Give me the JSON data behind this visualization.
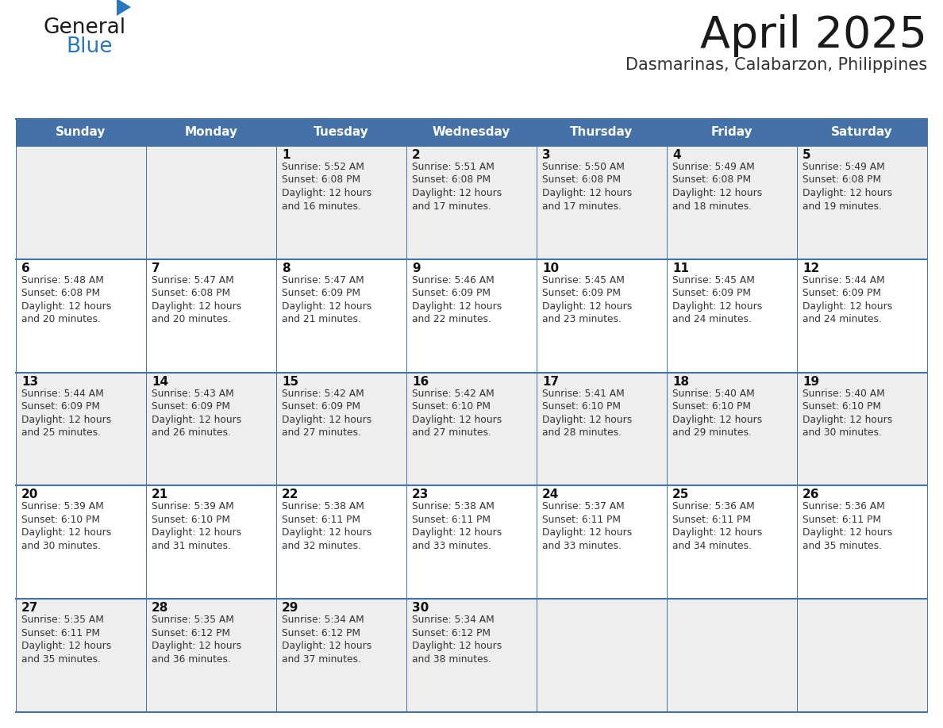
{
  "title": "April 2025",
  "subtitle": "Dasmarinas, Calabarzon, Philippines",
  "header_color": "#4472a8",
  "header_text_color": "#ffffff",
  "row_bg_colors": [
    "#eeeeee",
    "#ffffff",
    "#eeeeee",
    "#ffffff",
    "#eeeeee"
  ],
  "border_color": "#4472a8",
  "inner_line_color": "#4472a8",
  "day_headers": [
    "Sunday",
    "Monday",
    "Tuesday",
    "Wednesday",
    "Thursday",
    "Friday",
    "Saturday"
  ],
  "title_color": "#1a1a1a",
  "subtitle_color": "#333333",
  "cell_text_color": "#333333",
  "day_num_color": "#111111",
  "logo_general_color": "#1a1a1a",
  "logo_blue_color": "#2878c0",
  "weeks": [
    [
      {
        "day": "",
        "sunrise": "",
        "sunset": "",
        "daylight": ""
      },
      {
        "day": "",
        "sunrise": "",
        "sunset": "",
        "daylight": ""
      },
      {
        "day": "1",
        "sunrise": "5:52 AM",
        "sunset": "6:08 PM",
        "daylight": "12 hours\nand 16 minutes."
      },
      {
        "day": "2",
        "sunrise": "5:51 AM",
        "sunset": "6:08 PM",
        "daylight": "12 hours\nand 17 minutes."
      },
      {
        "day": "3",
        "sunrise": "5:50 AM",
        "sunset": "6:08 PM",
        "daylight": "12 hours\nand 17 minutes."
      },
      {
        "day": "4",
        "sunrise": "5:49 AM",
        "sunset": "6:08 PM",
        "daylight": "12 hours\nand 18 minutes."
      },
      {
        "day": "5",
        "sunrise": "5:49 AM",
        "sunset": "6:08 PM",
        "daylight": "12 hours\nand 19 minutes."
      }
    ],
    [
      {
        "day": "6",
        "sunrise": "5:48 AM",
        "sunset": "6:08 PM",
        "daylight": "12 hours\nand 20 minutes."
      },
      {
        "day": "7",
        "sunrise": "5:47 AM",
        "sunset": "6:08 PM",
        "daylight": "12 hours\nand 20 minutes."
      },
      {
        "day": "8",
        "sunrise": "5:47 AM",
        "sunset": "6:09 PM",
        "daylight": "12 hours\nand 21 minutes."
      },
      {
        "day": "9",
        "sunrise": "5:46 AM",
        "sunset": "6:09 PM",
        "daylight": "12 hours\nand 22 minutes."
      },
      {
        "day": "10",
        "sunrise": "5:45 AM",
        "sunset": "6:09 PM",
        "daylight": "12 hours\nand 23 minutes."
      },
      {
        "day": "11",
        "sunrise": "5:45 AM",
        "sunset": "6:09 PM",
        "daylight": "12 hours\nand 24 minutes."
      },
      {
        "day": "12",
        "sunrise": "5:44 AM",
        "sunset": "6:09 PM",
        "daylight": "12 hours\nand 24 minutes."
      }
    ],
    [
      {
        "day": "13",
        "sunrise": "5:44 AM",
        "sunset": "6:09 PM",
        "daylight": "12 hours\nand 25 minutes."
      },
      {
        "day": "14",
        "sunrise": "5:43 AM",
        "sunset": "6:09 PM",
        "daylight": "12 hours\nand 26 minutes."
      },
      {
        "day": "15",
        "sunrise": "5:42 AM",
        "sunset": "6:09 PM",
        "daylight": "12 hours\nand 27 minutes."
      },
      {
        "day": "16",
        "sunrise": "5:42 AM",
        "sunset": "6:10 PM",
        "daylight": "12 hours\nand 27 minutes."
      },
      {
        "day": "17",
        "sunrise": "5:41 AM",
        "sunset": "6:10 PM",
        "daylight": "12 hours\nand 28 minutes."
      },
      {
        "day": "18",
        "sunrise": "5:40 AM",
        "sunset": "6:10 PM",
        "daylight": "12 hours\nand 29 minutes."
      },
      {
        "day": "19",
        "sunrise": "5:40 AM",
        "sunset": "6:10 PM",
        "daylight": "12 hours\nand 30 minutes."
      }
    ],
    [
      {
        "day": "20",
        "sunrise": "5:39 AM",
        "sunset": "6:10 PM",
        "daylight": "12 hours\nand 30 minutes."
      },
      {
        "day": "21",
        "sunrise": "5:39 AM",
        "sunset": "6:10 PM",
        "daylight": "12 hours\nand 31 minutes."
      },
      {
        "day": "22",
        "sunrise": "5:38 AM",
        "sunset": "6:11 PM",
        "daylight": "12 hours\nand 32 minutes."
      },
      {
        "day": "23",
        "sunrise": "5:38 AM",
        "sunset": "6:11 PM",
        "daylight": "12 hours\nand 33 minutes."
      },
      {
        "day": "24",
        "sunrise": "5:37 AM",
        "sunset": "6:11 PM",
        "daylight": "12 hours\nand 33 minutes."
      },
      {
        "day": "25",
        "sunrise": "5:36 AM",
        "sunset": "6:11 PM",
        "daylight": "12 hours\nand 34 minutes."
      },
      {
        "day": "26",
        "sunrise": "5:36 AM",
        "sunset": "6:11 PM",
        "daylight": "12 hours\nand 35 minutes."
      }
    ],
    [
      {
        "day": "27",
        "sunrise": "5:35 AM",
        "sunset": "6:11 PM",
        "daylight": "12 hours\nand 35 minutes."
      },
      {
        "day": "28",
        "sunrise": "5:35 AM",
        "sunset": "6:12 PM",
        "daylight": "12 hours\nand 36 minutes."
      },
      {
        "day": "29",
        "sunrise": "5:34 AM",
        "sunset": "6:12 PM",
        "daylight": "12 hours\nand 37 minutes."
      },
      {
        "day": "30",
        "sunrise": "5:34 AM",
        "sunset": "6:12 PM",
        "daylight": "12 hours\nand 38 minutes."
      },
      {
        "day": "",
        "sunrise": "",
        "sunset": "",
        "daylight": ""
      },
      {
        "day": "",
        "sunrise": "",
        "sunset": "",
        "daylight": ""
      },
      {
        "day": "",
        "sunrise": "",
        "sunset": "",
        "daylight": ""
      }
    ]
  ]
}
